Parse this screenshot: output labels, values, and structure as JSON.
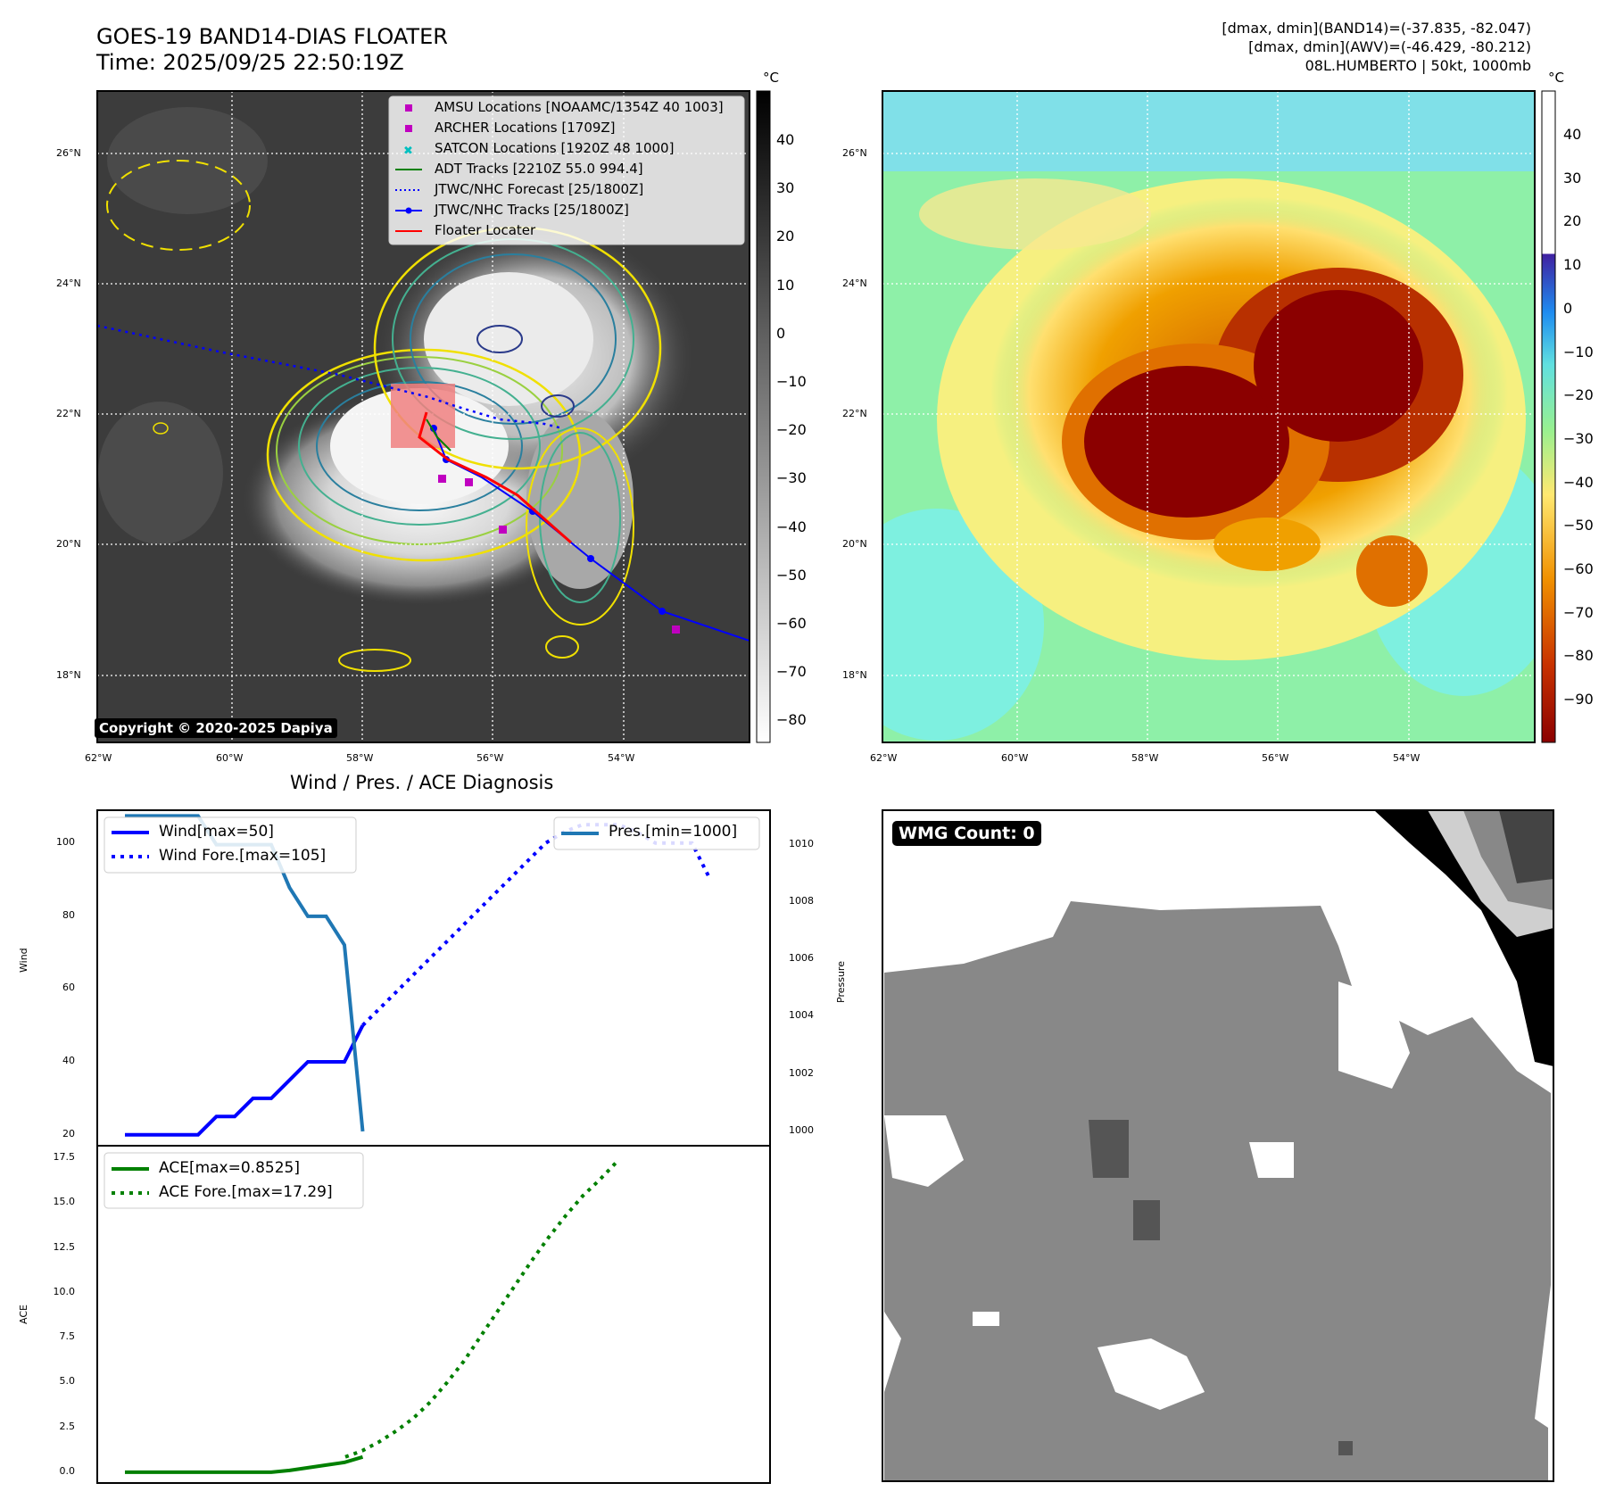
{
  "header": {
    "title_line1": "GOES-19 BAND14-DIAS FLOATER",
    "title_line2": "Time: 2025/09/25 22:50:19Z",
    "info_line1": "[dmax, dmin](BAND14)=(-37.835, -82.047)",
    "info_line2": "[dmax, dmin](AWV)=(-46.429, -80.212)",
    "info_line3": "08L.HUMBERTO | 50kt, 1000mb"
  },
  "map_left": {
    "lat_ticks": [
      "26°N",
      "24°N",
      "22°N",
      "20°N",
      "18°N"
    ],
    "lon_ticks": [
      "62°W",
      "60°W",
      "58°W",
      "56°W",
      "54°W"
    ],
    "colorbar_unit": "°C",
    "colorbar_ticks": [
      "40",
      "30",
      "20",
      "10",
      "0",
      "−10",
      "−20",
      "−30",
      "−40",
      "−50",
      "−60",
      "−70",
      "−80"
    ],
    "copyright": "Copyright © 2020-2025 Dapiya",
    "legend": [
      {
        "label": "AMSU Locations [NOAAMC/1354Z 40 1003]",
        "color": "#c000c0"
      },
      {
        "label": "ARCHER Locations [1709Z]",
        "color": "#c000c0"
      },
      {
        "label": "SATCON Locations [1920Z 48 1000]",
        "color": "#00bfbf"
      },
      {
        "label": "ADT Tracks [2210Z 55.0 994.4]",
        "color": "#008000"
      },
      {
        "label": "JTWC/NHC Forecast [25/1800Z]",
        "color": "#0000ff"
      },
      {
        "label": "JTWC/NHC Tracks [25/1800Z]",
        "color": "#0000ff"
      },
      {
        "label": "Floater Locater",
        "color": "#ff0000"
      }
    ]
  },
  "map_right": {
    "lat_ticks": [
      "26°N",
      "24°N",
      "22°N",
      "20°N",
      "18°N"
    ],
    "lon_ticks": [
      "62°W",
      "60°W",
      "58°W",
      "56°W",
      "54°W"
    ],
    "colorbar_unit": "°C",
    "colorbar_ticks": [
      "40",
      "30",
      "20",
      "10",
      "0",
      "−10",
      "−20",
      "−30",
      "−40",
      "−50",
      "−60",
      "−70",
      "−80",
      "−90"
    ]
  },
  "wmg": {
    "label": "WMG Count: 0"
  },
  "chart_data": [
    {
      "type": "line",
      "title": "Wind / Pres. / ACE Diagnosis",
      "ylabel": "Wind",
      "y2label": "Pressure",
      "ylim": [
        17,
        109
      ],
      "y2lim": [
        999.5,
        1011.2
      ],
      "yticks": [
        "20",
        "40",
        "60",
        "80",
        "100"
      ],
      "y2ticks": [
        "1000",
        "1002",
        "1004",
        "1006",
        "1008",
        "1010"
      ],
      "series": [
        {
          "name": "Wind[max=50]",
          "color": "#0000ff",
          "style": "solid",
          "values": [
            20,
            20,
            20,
            20,
            20,
            25,
            25,
            30,
            30,
            35,
            40,
            40,
            40,
            50
          ]
        },
        {
          "name": "Wind Fore.[max=105]",
          "color": "#0000ff",
          "style": "dotted",
          "values": [
            50,
            55,
            60,
            65,
            70,
            75,
            80,
            85,
            90,
            95,
            100,
            103,
            105,
            105,
            105,
            103,
            100,
            100,
            100,
            90
          ]
        },
        {
          "name": "Pres.[min=1000]",
          "color": "#1f77b4",
          "style": "solid",
          "axis": "right",
          "values": [
            1011,
            1011,
            1011,
            1011,
            1011,
            1010,
            1010,
            1010,
            1010,
            1008.5,
            1007.5,
            1007.5,
            1006.5,
            1000
          ]
        }
      ]
    },
    {
      "type": "line",
      "ylabel": "ACE",
      "ylim": [
        -0.6,
        18.2
      ],
      "yticks": [
        "0.0",
        "2.5",
        "5.0",
        "7.5",
        "10.0",
        "12.5",
        "15.0",
        "17.5"
      ],
      "series": [
        {
          "name": "ACE[max=0.8525]",
          "color": "#008000",
          "style": "solid",
          "values": [
            0,
            0,
            0,
            0,
            0,
            0,
            0,
            0,
            0,
            0.1,
            0.25,
            0.4,
            0.55,
            0.85
          ]
        },
        {
          "name": "ACE Fore.[max=17.29]",
          "color": "#008000",
          "style": "dotted",
          "values": [
            0.85,
            1.2,
            1.7,
            2.3,
            3.0,
            3.9,
            5.0,
            6.2,
            7.6,
            9.0,
            10.4,
            11.8,
            13.1,
            14.3,
            15.4,
            16.3,
            17.29
          ]
        }
      ]
    }
  ]
}
